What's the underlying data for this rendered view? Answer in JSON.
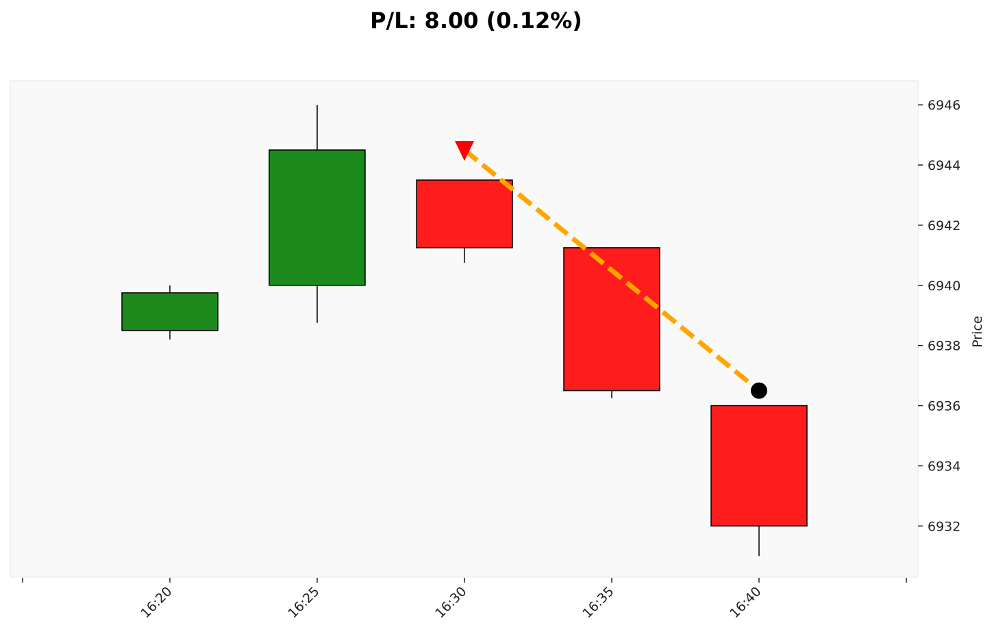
{
  "chart_data": {
    "type": "candlestick",
    "title": "P/L: 8.00 (0.12%)",
    "xlabel": "",
    "ylabel": "Price",
    "ylim": [
      6930.3,
      6946.8
    ],
    "y_ticks": [
      6932,
      6934,
      6936,
      6938,
      6940,
      6942,
      6944,
      6946
    ],
    "x_ticks": [
      "16:20",
      "16:25",
      "16:30",
      "16:35",
      "16:40"
    ],
    "grid": false,
    "candles": [
      {
        "time": "16:20",
        "open": 6938.5,
        "high": 6940.0,
        "low": 6938.2,
        "close": 6939.75
      },
      {
        "time": "16:25",
        "open": 6940.0,
        "high": 6946.0,
        "low": 6938.75,
        "close": 6944.5
      },
      {
        "time": "16:30",
        "open": 6943.5,
        "high": 6943.5,
        "low": 6940.75,
        "close": 6941.25
      },
      {
        "time": "16:35",
        "open": 6941.25,
        "high": 6941.25,
        "low": 6936.25,
        "close": 6936.5
      },
      {
        "time": "16:40",
        "open": 6936.0,
        "high": 6936.0,
        "low": 6931.0,
        "close": 6932.0
      }
    ],
    "trade": {
      "entry": {
        "time": "16:30",
        "price": 6944.5,
        "marker": "down-triangle"
      },
      "exit": {
        "time": "16:40",
        "price": 6936.5,
        "marker": "circle"
      }
    },
    "colors": {
      "up": "#1c8a1c",
      "down": "#ff1c1c",
      "trade_line": "#ffa500",
      "entry_marker": "#ff0000",
      "exit_marker": "#000000",
      "plot_bg": "#f9f9f9",
      "axis_frame": "#eeeeee"
    }
  }
}
